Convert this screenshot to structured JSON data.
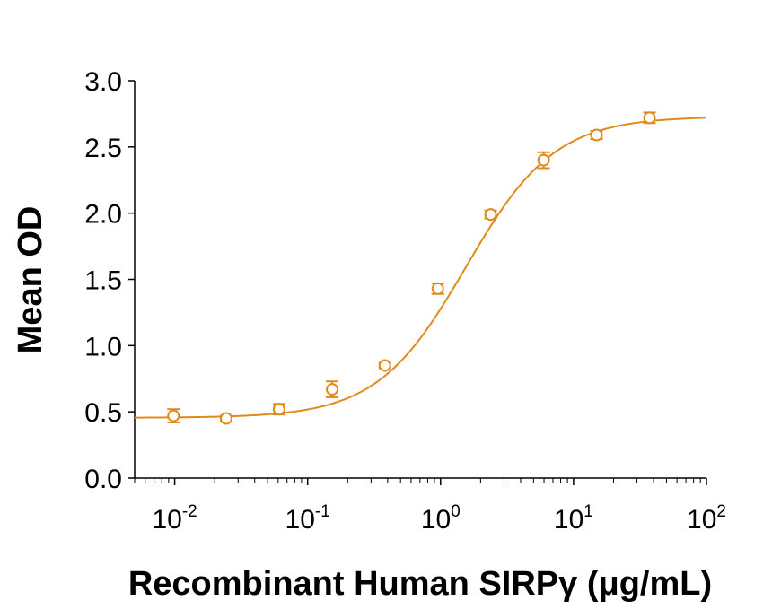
{
  "chart_data": {
    "type": "scatter",
    "title": "",
    "xlabel": "Recombinant Human SIRPγ (μg/mL)",
    "ylabel": "Mean OD",
    "xscale": "log",
    "xlim": [
      0.005,
      100
    ],
    "ylim": [
      0,
      3.0
    ],
    "grid": false,
    "legend": "none",
    "color": "#E08A1E",
    "y_ticks": [
      "0.0",
      "0.5",
      "1.0",
      "1.5",
      "2.0",
      "2.5",
      "3.0"
    ],
    "x_ticks": [
      {
        "value": 0.01,
        "base": "10",
        "exp": "-2"
      },
      {
        "value": 0.1,
        "base": "10",
        "exp": "-1"
      },
      {
        "value": 1,
        "base": "10",
        "exp": "0"
      },
      {
        "value": 10,
        "base": "10",
        "exp": "1"
      },
      {
        "value": 100,
        "base": "10",
        "exp": "2"
      }
    ],
    "series": [
      {
        "points": [
          {
            "x": 0.0098,
            "y": 0.47,
            "err": 0.05
          },
          {
            "x": 0.0244,
            "y": 0.45,
            "err": 0.02
          },
          {
            "x": 0.061,
            "y": 0.52,
            "err": 0.04
          },
          {
            "x": 0.153,
            "y": 0.67,
            "err": 0.06
          },
          {
            "x": 0.381,
            "y": 0.85,
            "err": 0.02
          },
          {
            "x": 0.954,
            "y": 1.43,
            "err": 0.04
          },
          {
            "x": 2.38,
            "y": 1.99,
            "err": 0.03
          },
          {
            "x": 5.96,
            "y": 2.4,
            "err": 0.06
          },
          {
            "x": 14.9,
            "y": 2.59,
            "err": 0.03
          },
          {
            "x": 37.3,
            "y": 2.72,
            "err": 0.04
          }
        ],
        "fit": {
          "bottom": 0.455,
          "top": 2.73,
          "ec50": 1.55,
          "hill": 1.3
        }
      }
    ]
  }
}
